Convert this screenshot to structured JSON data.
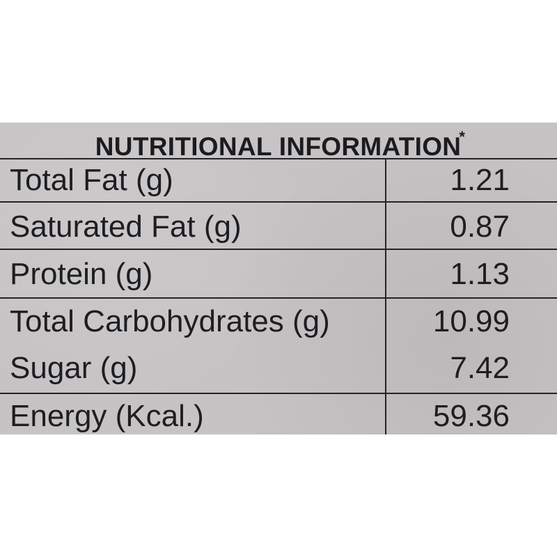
{
  "label": {
    "title": "NUTRITIONAL INFORMATION",
    "title_mark": "*",
    "rows": [
      {
        "name": "Total Fat (g)",
        "value": "1.21"
      },
      {
        "name": "Saturated Fat (g)",
        "value": "0.87"
      },
      {
        "name": "Protein (g)",
        "value": "1.13"
      },
      {
        "name": "Total Carbohydrates (g)",
        "value": "10.99"
      },
      {
        "name": "Sugar (g)",
        "value": "7.42"
      },
      {
        "name": "Energy (Kcal.)",
        "value": "59.36"
      }
    ],
    "colors": {
      "card": "#c7c4c6",
      "ink": "#1e1d21",
      "background": "#ffffff"
    }
  }
}
